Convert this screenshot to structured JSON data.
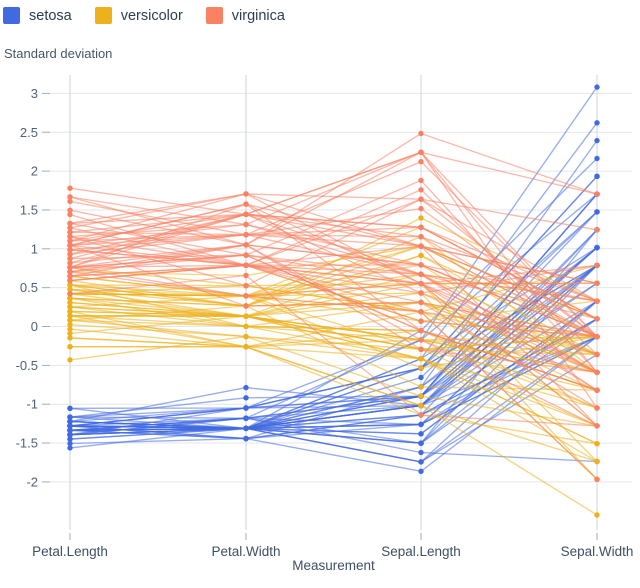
{
  "y_axis_title": "Standard deviation",
  "chart_data": {
    "type": "line",
    "variant": "parallel-coordinates",
    "title": "",
    "ylabel": "Standard deviation",
    "xlabel": "Measurement",
    "categories": [
      "Petal.Length",
      "Petal.Width",
      "Sepal.Length",
      "Sepal.Width"
    ],
    "yticks": [
      3,
      2.5,
      2,
      1.5,
      1,
      0.5,
      0,
      -0.5,
      -1,
      -1.5,
      -2
    ],
    "ylim": [
      -2.45,
      3.15
    ],
    "grid": true,
    "legend_position": "top-left",
    "values_are": "raw iris measurements per row [Petal.Length, Petal.Width, Sepal.Length, Sepal.Width]; plotted after z-score standardization per measurement",
    "series": [
      {
        "name": "setosa",
        "color": "#4169e1",
        "rows": [
          [
            1.4,
            0.2,
            5.1,
            3.5
          ],
          [
            1.4,
            0.2,
            4.9,
            3.0
          ],
          [
            1.3,
            0.2,
            4.7,
            3.2
          ],
          [
            1.5,
            0.2,
            4.6,
            3.1
          ],
          [
            1.4,
            0.2,
            5.0,
            3.6
          ],
          [
            1.7,
            0.4,
            5.4,
            3.9
          ],
          [
            1.4,
            0.3,
            4.6,
            3.4
          ],
          [
            1.5,
            0.2,
            5.0,
            3.4
          ],
          [
            1.4,
            0.2,
            4.4,
            2.9
          ],
          [
            1.5,
            0.1,
            4.9,
            3.1
          ],
          [
            1.5,
            0.2,
            5.4,
            3.7
          ],
          [
            1.6,
            0.2,
            4.8,
            3.4
          ],
          [
            1.4,
            0.1,
            4.8,
            3.0
          ],
          [
            1.1,
            0.1,
            4.3,
            3.0
          ],
          [
            1.2,
            0.2,
            5.8,
            4.0
          ],
          [
            1.5,
            0.4,
            5.7,
            4.4
          ],
          [
            1.3,
            0.4,
            5.4,
            3.9
          ],
          [
            1.4,
            0.3,
            5.1,
            3.5
          ],
          [
            1.7,
            0.3,
            5.7,
            3.8
          ],
          [
            1.5,
            0.3,
            5.1,
            3.8
          ],
          [
            1.7,
            0.2,
            5.4,
            3.4
          ],
          [
            1.5,
            0.4,
            5.1,
            3.7
          ],
          [
            1.0,
            0.2,
            4.6,
            3.6
          ],
          [
            1.7,
            0.5,
            5.1,
            3.3
          ],
          [
            1.9,
            0.2,
            4.8,
            3.4
          ],
          [
            1.6,
            0.2,
            5.0,
            3.0
          ],
          [
            1.6,
            0.4,
            5.0,
            3.4
          ],
          [
            1.5,
            0.2,
            5.2,
            3.5
          ],
          [
            1.4,
            0.2,
            5.2,
            3.4
          ],
          [
            1.6,
            0.2,
            4.7,
            3.2
          ],
          [
            1.6,
            0.2,
            4.8,
            3.1
          ],
          [
            1.5,
            0.4,
            5.4,
            3.4
          ],
          [
            1.5,
            0.1,
            5.2,
            4.1
          ],
          [
            1.4,
            0.2,
            5.5,
            4.2
          ],
          [
            1.5,
            0.2,
            4.9,
            3.1
          ],
          [
            1.2,
            0.2,
            5.0,
            3.2
          ],
          [
            1.3,
            0.2,
            5.5,
            3.5
          ],
          [
            1.4,
            0.1,
            4.9,
            3.6
          ],
          [
            1.3,
            0.2,
            4.4,
            3.0
          ],
          [
            1.5,
            0.2,
            5.1,
            3.4
          ],
          [
            1.3,
            0.3,
            5.0,
            3.5
          ],
          [
            1.3,
            0.3,
            4.5,
            2.3
          ],
          [
            1.3,
            0.2,
            4.4,
            3.2
          ],
          [
            1.6,
            0.6,
            5.0,
            3.5
          ],
          [
            1.9,
            0.4,
            5.1,
            3.8
          ],
          [
            1.4,
            0.3,
            4.8,
            3.0
          ],
          [
            1.6,
            0.2,
            5.1,
            3.8
          ],
          [
            1.4,
            0.2,
            4.6,
            3.2
          ],
          [
            1.5,
            0.2,
            5.3,
            3.7
          ],
          [
            1.4,
            0.2,
            5.0,
            3.3
          ]
        ]
      },
      {
        "name": "versicolor",
        "color": "#ecb11c",
        "rows": [
          [
            4.7,
            1.4,
            7.0,
            3.2
          ],
          [
            4.5,
            1.5,
            6.4,
            3.2
          ],
          [
            4.9,
            1.5,
            6.9,
            3.1
          ],
          [
            4.0,
            1.3,
            5.5,
            2.3
          ],
          [
            4.6,
            1.5,
            6.5,
            2.8
          ],
          [
            4.5,
            1.3,
            5.7,
            2.8
          ],
          [
            4.7,
            1.6,
            6.3,
            3.3
          ],
          [
            3.3,
            1.0,
            4.9,
            2.4
          ],
          [
            4.6,
            1.3,
            6.6,
            2.9
          ],
          [
            3.9,
            1.4,
            5.2,
            2.7
          ],
          [
            3.5,
            1.0,
            5.0,
            2.0
          ],
          [
            4.2,
            1.5,
            5.9,
            3.0
          ],
          [
            4.0,
            1.0,
            6.0,
            2.2
          ],
          [
            4.7,
            1.4,
            6.1,
            2.9
          ],
          [
            3.6,
            1.3,
            5.6,
            2.9
          ],
          [
            4.4,
            1.4,
            6.7,
            3.1
          ],
          [
            4.5,
            1.5,
            5.6,
            3.0
          ],
          [
            4.1,
            1.0,
            5.8,
            2.7
          ],
          [
            4.5,
            1.5,
            6.2,
            2.2
          ],
          [
            3.9,
            1.1,
            5.6,
            2.5
          ],
          [
            4.8,
            1.8,
            5.9,
            3.2
          ],
          [
            4.0,
            1.3,
            6.1,
            2.8
          ],
          [
            4.9,
            1.5,
            6.3,
            2.5
          ],
          [
            4.7,
            1.2,
            6.1,
            2.8
          ],
          [
            4.3,
            1.3,
            6.4,
            2.9
          ],
          [
            4.4,
            1.4,
            6.6,
            3.0
          ],
          [
            4.8,
            1.4,
            6.8,
            2.8
          ],
          [
            5.0,
            1.7,
            6.7,
            3.0
          ],
          [
            4.5,
            1.5,
            6.0,
            2.9
          ],
          [
            3.5,
            1.0,
            5.7,
            2.6
          ],
          [
            3.8,
            1.1,
            5.5,
            2.4
          ],
          [
            3.7,
            1.0,
            5.5,
            2.4
          ],
          [
            3.9,
            1.2,
            5.8,
            2.7
          ],
          [
            5.1,
            1.6,
            6.0,
            2.7
          ],
          [
            4.5,
            1.5,
            5.4,
            3.0
          ],
          [
            4.5,
            1.6,
            6.0,
            3.4
          ],
          [
            4.7,
            1.5,
            6.7,
            3.1
          ],
          [
            4.4,
            1.3,
            6.3,
            2.3
          ],
          [
            4.1,
            1.3,
            5.6,
            3.0
          ],
          [
            4.0,
            1.3,
            5.5,
            2.5
          ],
          [
            4.4,
            1.2,
            5.5,
            2.6
          ],
          [
            4.6,
            1.4,
            6.1,
            3.0
          ],
          [
            4.0,
            1.2,
            5.8,
            2.6
          ],
          [
            3.3,
            1.0,
            5.0,
            2.3
          ],
          [
            4.2,
            1.3,
            5.6,
            2.7
          ],
          [
            4.2,
            1.2,
            5.7,
            3.0
          ],
          [
            4.2,
            1.3,
            5.7,
            2.9
          ],
          [
            4.3,
            1.3,
            6.2,
            2.9
          ],
          [
            3.0,
            1.1,
            5.1,
            2.5
          ],
          [
            4.1,
            1.3,
            5.7,
            2.8
          ]
        ]
      },
      {
        "name": "virginica",
        "color": "#fa8164",
        "rows": [
          [
            6.0,
            2.5,
            6.3,
            3.3
          ],
          [
            5.1,
            1.9,
            5.8,
            2.7
          ],
          [
            5.9,
            2.1,
            7.1,
            3.0
          ],
          [
            5.6,
            1.8,
            6.3,
            2.9
          ],
          [
            5.8,
            2.2,
            6.5,
            3.0
          ],
          [
            6.6,
            2.1,
            7.6,
            3.0
          ],
          [
            4.5,
            1.7,
            4.9,
            2.5
          ],
          [
            6.3,
            1.8,
            7.3,
            2.9
          ],
          [
            5.8,
            1.8,
            6.7,
            2.5
          ],
          [
            6.1,
            2.5,
            7.2,
            3.6
          ],
          [
            5.1,
            2.0,
            6.5,
            3.2
          ],
          [
            5.3,
            1.9,
            6.4,
            2.7
          ],
          [
            5.5,
            2.1,
            6.8,
            3.0
          ],
          [
            5.0,
            2.0,
            5.7,
            2.5
          ],
          [
            5.1,
            2.4,
            5.8,
            2.8
          ],
          [
            5.3,
            2.3,
            6.4,
            3.2
          ],
          [
            5.5,
            1.8,
            6.5,
            3.0
          ],
          [
            6.7,
            2.2,
            7.7,
            3.8
          ],
          [
            6.9,
            2.3,
            7.7,
            2.6
          ],
          [
            5.0,
            1.5,
            6.0,
            2.2
          ],
          [
            5.7,
            2.3,
            6.9,
            3.2
          ],
          [
            4.9,
            2.0,
            5.6,
            2.8
          ],
          [
            6.7,
            2.0,
            7.7,
            2.8
          ],
          [
            4.9,
            1.8,
            6.3,
            2.7
          ],
          [
            5.7,
            2.1,
            6.7,
            3.3
          ],
          [
            6.0,
            1.8,
            7.2,
            3.2
          ],
          [
            4.8,
            1.8,
            6.2,
            2.8
          ],
          [
            4.9,
            1.8,
            6.1,
            3.0
          ],
          [
            5.6,
            2.1,
            6.4,
            2.8
          ],
          [
            5.8,
            1.6,
            7.2,
            3.0
          ],
          [
            6.1,
            1.9,
            7.4,
            2.8
          ],
          [
            6.4,
            2.0,
            7.9,
            3.8
          ],
          [
            5.6,
            2.2,
            6.4,
            2.8
          ],
          [
            5.1,
            1.5,
            6.3,
            2.8
          ],
          [
            5.6,
            1.4,
            6.1,
            2.6
          ],
          [
            6.1,
            2.3,
            7.7,
            3.0
          ],
          [
            5.6,
            2.4,
            6.3,
            3.4
          ],
          [
            5.5,
            1.8,
            6.4,
            3.1
          ],
          [
            4.8,
            1.8,
            6.0,
            3.0
          ],
          [
            5.4,
            2.1,
            6.9,
            3.1
          ],
          [
            5.6,
            2.4,
            6.7,
            3.1
          ],
          [
            5.1,
            2.3,
            6.9,
            3.1
          ],
          [
            5.1,
            1.9,
            5.8,
            2.7
          ],
          [
            5.9,
            2.3,
            6.8,
            3.2
          ],
          [
            5.7,
            2.5,
            6.7,
            3.3
          ],
          [
            5.2,
            2.3,
            6.7,
            3.0
          ],
          [
            5.0,
            1.9,
            6.3,
            2.5
          ],
          [
            5.2,
            2.0,
            6.5,
            3.0
          ],
          [
            5.4,
            2.3,
            6.2,
            3.4
          ],
          [
            5.1,
            1.8,
            5.9,
            3.0
          ]
        ]
      }
    ]
  }
}
